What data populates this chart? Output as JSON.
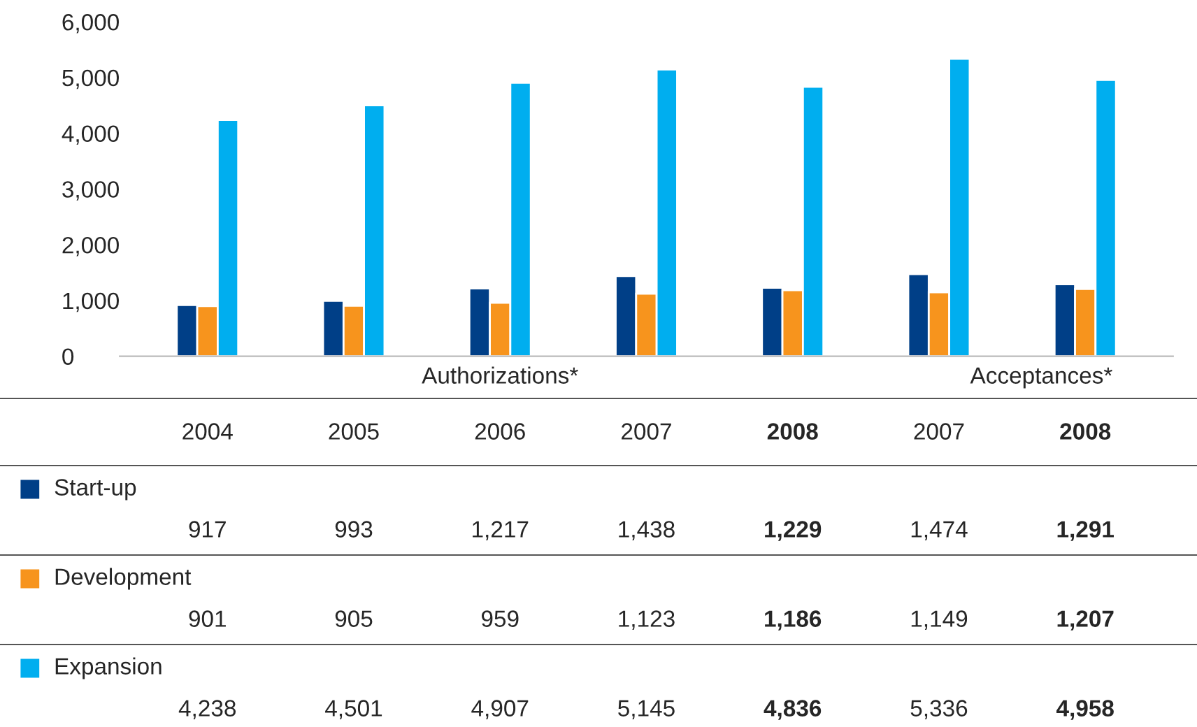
{
  "chart_data": {
    "type": "bar",
    "categories": [
      "2004",
      "2005",
      "2006",
      "2007",
      "2008",
      "2007",
      "2008"
    ],
    "series": [
      {
        "name": "Start-up",
        "color": "#003f87",
        "values": [
          917,
          993,
          1217,
          1438,
          1229,
          1474,
          1291
        ],
        "value_labels": [
          "917",
          "993",
          "1,217",
          "1,438",
          "1,229",
          "1,474",
          "1,291"
        ]
      },
      {
        "name": "Development",
        "color": "#f7941d",
        "values": [
          901,
          905,
          959,
          1123,
          1186,
          1149,
          1207
        ],
        "value_labels": [
          "901",
          "905",
          "959",
          "1,123",
          "1,186",
          "1,149",
          "1,207"
        ]
      },
      {
        "name": "Expansion",
        "color": "#00aeef",
        "values": [
          4238,
          4501,
          4907,
          5145,
          4836,
          5336,
          4958
        ],
        "value_labels": [
          "4,238",
          "4,501",
          "4,907",
          "5,145",
          "4,836",
          "5,336",
          "4,958"
        ]
      }
    ],
    "ylim": [
      0,
      6000
    ],
    "yticks": [
      0,
      {
        "value": 1000,
        "label": "1,000"
      },
      {
        "value": 2000,
        "label": "2,000"
      },
      {
        "value": 3000,
        "label": "3,000"
      },
      {
        "value": 4000,
        "label": "4,000"
      },
      {
        "value": 5000,
        "label": "5,000"
      },
      {
        "value": 6000,
        "label": "6,000"
      }
    ],
    "annotations": [
      "Authorizations*",
      "Acceptances*"
    ],
    "grid": false,
    "legend": "bottom left"
  }
}
